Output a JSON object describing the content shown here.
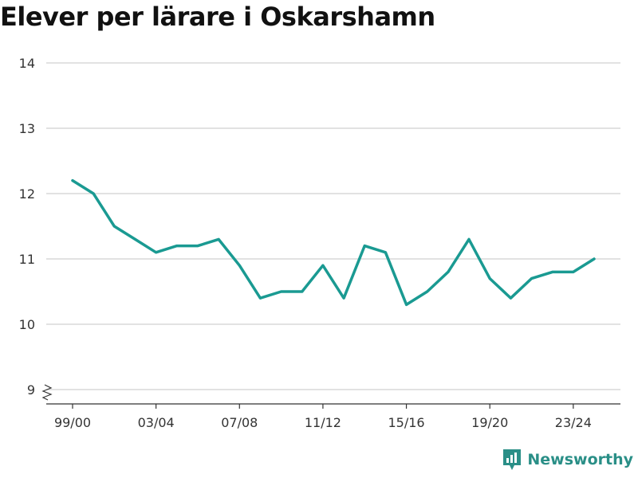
{
  "title": "Elever per lärare i Oskarshamn",
  "brand": {
    "name": "Newsworthy"
  },
  "colors": {
    "line": "#1a9a92",
    "grid": "#d9d9d9",
    "axis": "#333333",
    "brand": "#2a8f87"
  },
  "chart_data": {
    "type": "line",
    "title": "Elever per lärare i Oskarshamn",
    "xlabel": "",
    "ylabel": "",
    "ylim": [
      9,
      14
    ],
    "y_ticks": [
      9,
      10,
      11,
      12,
      13,
      14
    ],
    "y_axis_break": true,
    "grid": true,
    "x": [
      "99/00",
      "00/01",
      "01/02",
      "02/03",
      "03/04",
      "04/05",
      "05/06",
      "06/07",
      "07/08",
      "08/09",
      "09/10",
      "10/11",
      "11/12",
      "12/13",
      "13/14",
      "14/15",
      "15/16",
      "16/17",
      "17/18",
      "18/19",
      "19/20",
      "20/21",
      "21/22",
      "22/23",
      "23/24",
      "24/25"
    ],
    "x_tick_labels": [
      "99/00",
      "03/04",
      "07/08",
      "11/12",
      "15/16",
      "19/20",
      "23/24"
    ],
    "series": [
      {
        "values": [
          12.2,
          12.0,
          11.5,
          11.3,
          11.1,
          11.2,
          11.2,
          11.3,
          10.9,
          10.4,
          10.5,
          10.5,
          10.9,
          10.4,
          11.2,
          11.1,
          10.3,
          10.5,
          10.8,
          11.3,
          10.7,
          10.4,
          10.7,
          10.8,
          10.8,
          11.0
        ]
      }
    ]
  }
}
